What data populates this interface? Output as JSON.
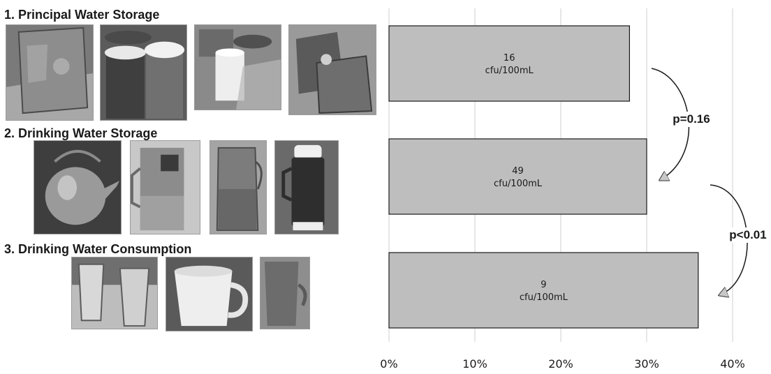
{
  "sections": [
    {
      "title": "1. Principal Water Storage",
      "photos": [
        "barrel-container-photo",
        "plastic-bins-photo",
        "buckets-photo",
        "jerrycans-photo"
      ]
    },
    {
      "title": "2. Drinking Water Storage",
      "photos": [
        "kettle-photo",
        "pitcher-photo",
        "glass-jar-photo",
        "thermos-photo"
      ]
    },
    {
      "title": "3. Drinking Water Consumption",
      "photos": [
        "glasses-photo",
        "mug-photo",
        "cup-photo"
      ]
    }
  ],
  "chart_data": {
    "type": "bar",
    "orientation": "horizontal",
    "categories": [
      "1. Principal Water Storage",
      "2. Drinking Water Storage",
      "3. Drinking Water Consumption"
    ],
    "values": [
      28,
      30,
      36
    ],
    "value_unit": "%",
    "bar_labels": [
      {
        "count": "16",
        "unit": "cfu/100mL"
      },
      {
        "count": "49",
        "unit": "cfu/100mL"
      },
      {
        "count": "9",
        "unit": "cfu/100mL"
      }
    ],
    "xlim": [
      0,
      40
    ],
    "xticks": [
      "0%",
      "10%",
      "20%",
      "30%",
      "40%"
    ],
    "xlabel": "",
    "ylabel": "",
    "grid": "vertical",
    "bar_color": "#bebebe",
    "annotations": [
      {
        "text": "p=0.16",
        "from": 0,
        "to": 1
      },
      {
        "text": "p<0.01",
        "from": 1,
        "to": 2
      }
    ]
  }
}
